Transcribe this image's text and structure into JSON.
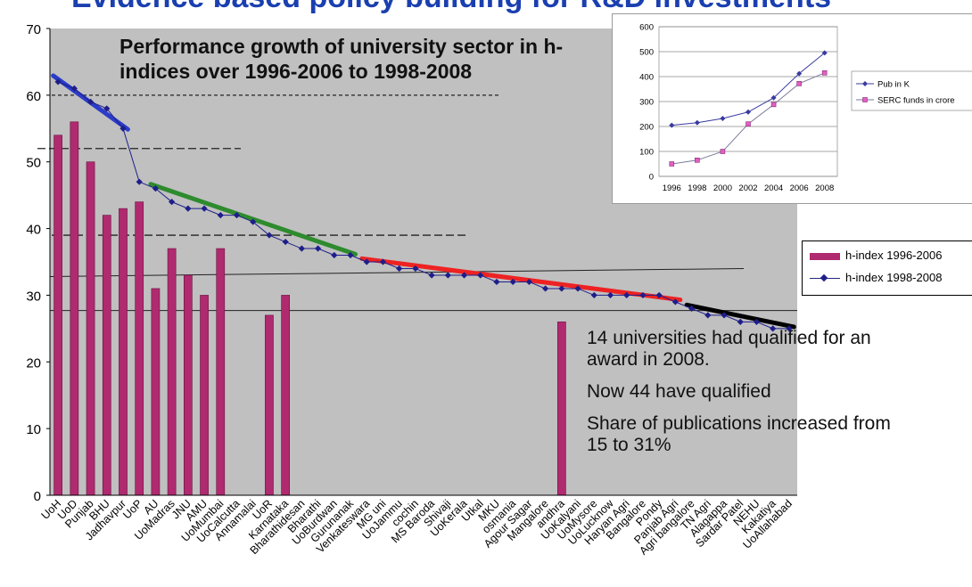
{
  "slide": {
    "title": "Evidence based policy building for R&D investments"
  },
  "annotations": {
    "performance_title": "Performance growth of university sector in h-indices over 1996-2006 to 1998-2008",
    "qualified_2008": "14 universities had qualified for an award in 2008.",
    "now_qualified": "Now 44 have qualified",
    "share": "Share of publications increased from 15 to 31%"
  },
  "colors": {
    "bar": "#b02a70",
    "line": "#1e1e8a",
    "plot_bg": "#c0c0c0",
    "trend_blue": "#2c3cc8",
    "trend_green": "#2e8b2e",
    "trend_red": "#ee2222",
    "trend_black": "#000000",
    "inset_pub": "#3a3aa0",
    "inset_serc": "#e060c0"
  },
  "chart_data": [
    {
      "type": "bar",
      "categories": [
        "UoH",
        "UoD",
        "Punjab",
        "BHU",
        "Jadhavpur",
        "UoP",
        "AU",
        "UoMadras",
        "JNU",
        "AMU",
        "UoMumbai",
        "UoCalcutta",
        "Annamalai",
        "UoR",
        "Karnataka",
        "Bharathidesan",
        "Bharathi",
        "UoBurdwan",
        "Gurunanak",
        "Venkateswara",
        "MG uni",
        "UoJammu",
        "cochin",
        "MS Baroda",
        "Shivaji",
        "UoKerala",
        "Utkal",
        "MKU",
        "osmania",
        "Agour Sagar",
        "Mangalore",
        "andhra",
        "UoKalyani",
        "UoMysore",
        "UoLucknow",
        "Haryan Agri",
        "Bangalore",
        "Pondy",
        "Panjab Agri",
        "Agri bangalore",
        "TN Agri",
        "Alagappa",
        "Sardar Patel",
        "NEHU",
        "Kakatiya",
        "UoAllahabad"
      ],
      "series": [
        {
          "name": "h-index 1996-2006",
          "type": "bar",
          "values": [
            54,
            56,
            50,
            42,
            43,
            44,
            31,
            37,
            33,
            30,
            37,
            null,
            null,
            27,
            30,
            null,
            null,
            null,
            null,
            null,
            null,
            null,
            null,
            null,
            null,
            null,
            null,
            null,
            null,
            null,
            null,
            26,
            null,
            null,
            null,
            null,
            null,
            null,
            null,
            null,
            null,
            null,
            null,
            null,
            null,
            null
          ]
        },
        {
          "name": "h-index 1998-2008",
          "type": "line",
          "values": [
            62,
            61,
            59,
            58,
            55,
            47,
            46,
            44,
            43,
            43,
            42,
            42,
            41,
            39,
            38,
            37,
            37,
            36,
            36,
            35,
            35,
            34,
            34,
            33,
            33,
            33,
            33,
            32,
            32,
            32,
            31,
            31,
            31,
            30,
            30,
            30,
            30,
            30,
            29,
            28,
            27,
            27,
            26,
            26,
            25,
            25
          ]
        }
      ],
      "reference_lines": [
        60,
        52,
        39
      ],
      "trend_segments": [
        {
          "color": "blue",
          "from": "UoH",
          "to": "Jadhavpur"
        },
        {
          "color": "green",
          "from": "AU",
          "to": "Gurunanak"
        },
        {
          "color": "red",
          "from": "Venkateswara",
          "to": "Panjab Agri"
        },
        {
          "color": "black",
          "from": "Agri bangalore",
          "to": "UoAllahabad"
        }
      ],
      "ylim": [
        0,
        70
      ],
      "yticks": [
        0,
        10,
        20,
        30,
        40,
        50,
        60,
        70
      ],
      "xlabel": "",
      "ylabel": "",
      "legend": "right",
      "grid": false
    },
    {
      "type": "line",
      "x": [
        1996,
        1998,
        2000,
        2002,
        2004,
        2006,
        2008
      ],
      "series": [
        {
          "name": "Pub in K",
          "values": [
            205,
            215,
            232,
            258,
            315,
            412,
            495
          ]
        },
        {
          "name": "SERC funds in crore",
          "values": [
            50,
            65,
            100,
            210,
            288,
            372,
            415
          ]
        }
      ],
      "ylim": [
        0,
        600
      ],
      "yticks": [
        0,
        100,
        200,
        300,
        400,
        500,
        600
      ],
      "xlabel": "",
      "ylabel": "",
      "legend": "right",
      "grid": true
    }
  ]
}
